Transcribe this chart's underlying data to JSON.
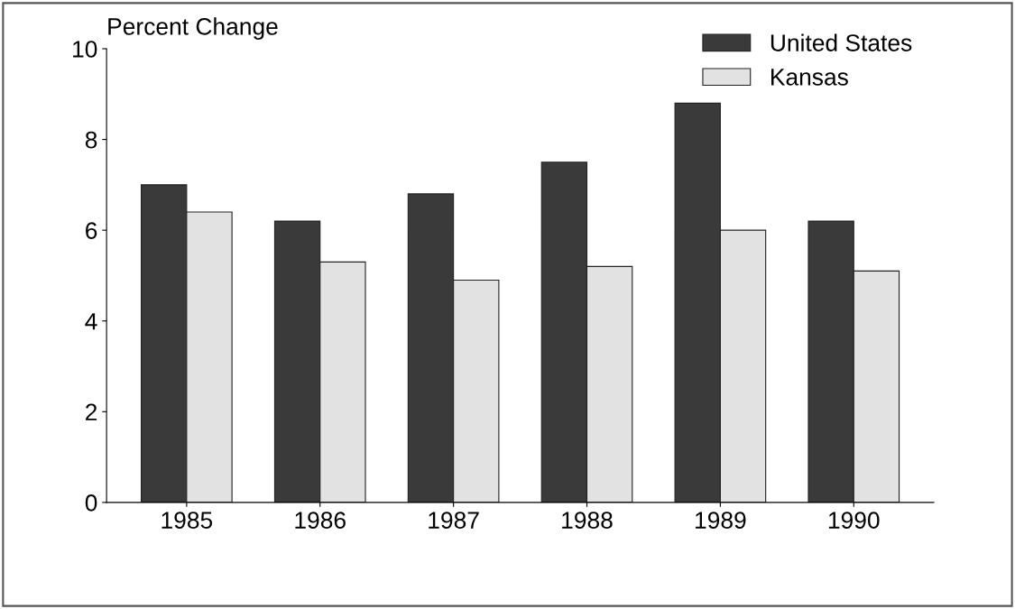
{
  "chart_data": {
    "type": "bar",
    "ylabel": "Percent Change",
    "categories": [
      "1985",
      "1986",
      "1987",
      "1988",
      "1989",
      "1990"
    ],
    "series": [
      {
        "name": "United States",
        "color": "#3a3a3a",
        "values": [
          7.0,
          6.2,
          6.8,
          7.5,
          8.8,
          6.2
        ]
      },
      {
        "name": "Kansas",
        "color": "#e2e2e2",
        "values": [
          6.4,
          5.3,
          4.9,
          5.2,
          6.0,
          5.1
        ]
      }
    ],
    "ylim": [
      0,
      10
    ],
    "yticks": [
      0,
      2,
      4,
      6,
      8,
      10
    ],
    "grid": false,
    "legend": "top right"
  }
}
